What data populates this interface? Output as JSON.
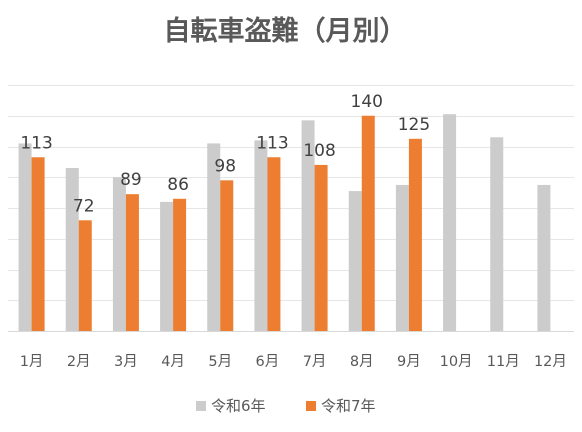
{
  "chart_data": {
    "type": "bar",
    "title": "自転車盗難（月別）",
    "categories": [
      "1月",
      "2月",
      "3月",
      "4月",
      "5月",
      "6月",
      "7月",
      "8月",
      "9月",
      "10月",
      "11月",
      "12月"
    ],
    "series": [
      {
        "name": "令和6年",
        "color": "#cccccc",
        "values": [
          122,
          106,
          100,
          84,
          122,
          124,
          137,
          91,
          95,
          141,
          126,
          95
        ],
        "labels": [
          "",
          "",
          "",
          "",
          "",
          "",
          "",
          "",
          "",
          "",
          "",
          ""
        ]
      },
      {
        "name": "令和7年",
        "color": "#ed7d31",
        "values": [
          113,
          72,
          89,
          86,
          98,
          113,
          108,
          140,
          125,
          null,
          null,
          null
        ],
        "labels": [
          "113",
          "72",
          "89",
          "86",
          "98",
          "113",
          "108",
          "140",
          "125",
          "",
          "",
          ""
        ]
      }
    ],
    "ylim": [
      0,
      160
    ],
    "grid": true,
    "legend": "bottom"
  }
}
